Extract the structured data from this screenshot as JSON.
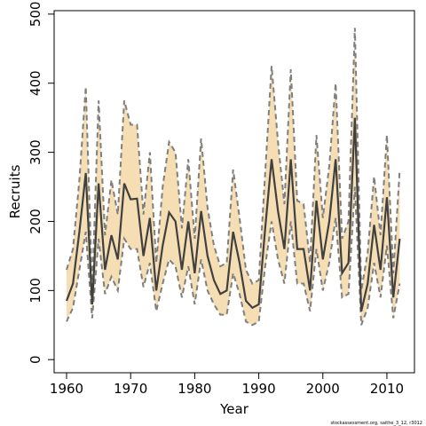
{
  "chart_data": {
    "type": "line",
    "xlabel": "Year",
    "ylabel": "Recruits",
    "footnote": "stockassessment.org, saithe_3_12, r3012",
    "x": [
      1960,
      1961,
      1962,
      1963,
      1964,
      1965,
      1966,
      1967,
      1968,
      1969,
      1970,
      1971,
      1972,
      1973,
      1974,
      1975,
      1976,
      1977,
      1978,
      1979,
      1980,
      1981,
      1982,
      1983,
      1984,
      1985,
      1986,
      1987,
      1988,
      1989,
      1990,
      1991,
      1992,
      1993,
      1994,
      1995,
      1996,
      1997,
      1998,
      1999,
      2000,
      2001,
      2002,
      2003,
      2004,
      2005,
      2006,
      2007,
      2008,
      2009,
      2010,
      2011,
      2012
    ],
    "values": [
      85,
      110,
      185,
      270,
      80,
      255,
      130,
      180,
      145,
      255,
      232,
      233,
      150,
      205,
      100,
      165,
      213,
      200,
      130,
      200,
      125,
      215,
      150,
      115,
      95,
      100,
      185,
      140,
      85,
      75,
      80,
      190,
      290,
      215,
      160,
      290,
      160,
      160,
      100,
      230,
      145,
      200,
      290,
      125,
      140,
      350,
      70,
      110,
      195,
      130,
      235,
      90,
      175
    ],
    "upper": [
      130,
      160,
      260,
      395,
      100,
      375,
      180,
      260,
      210,
      375,
      340,
      340,
      210,
      300,
      140,
      250,
      315,
      300,
      190,
      290,
      175,
      320,
      220,
      165,
      135,
      140,
      275,
      205,
      130,
      110,
      115,
      270,
      425,
      315,
      225,
      420,
      230,
      225,
      140,
      325,
      205,
      280,
      400,
      175,
      200,
      480,
      100,
      155,
      265,
      180,
      325,
      125,
      275
    ],
    "lower": [
      55,
      75,
      130,
      185,
      60,
      175,
      95,
      120,
      100,
      175,
      160,
      160,
      105,
      140,
      70,
      110,
      145,
      135,
      90,
      135,
      80,
      145,
      100,
      80,
      65,
      65,
      125,
      95,
      55,
      50,
      55,
      135,
      200,
      145,
      110,
      200,
      110,
      110,
      70,
      160,
      100,
      140,
      205,
      90,
      95,
      250,
      50,
      75,
      140,
      90,
      165,
      60,
      110
    ],
    "color": "#404040",
    "band_color": "#f5deb3",
    "bound_color": "#7f7f7f",
    "xlim": [
      1958.06,
      2014.3
    ],
    "ylim": [
      -19,
      505
    ],
    "xticks": [
      1960,
      1970,
      1980,
      1990,
      2000,
      2010
    ],
    "yticks": [
      0,
      100,
      200,
      300,
      400,
      500
    ]
  }
}
